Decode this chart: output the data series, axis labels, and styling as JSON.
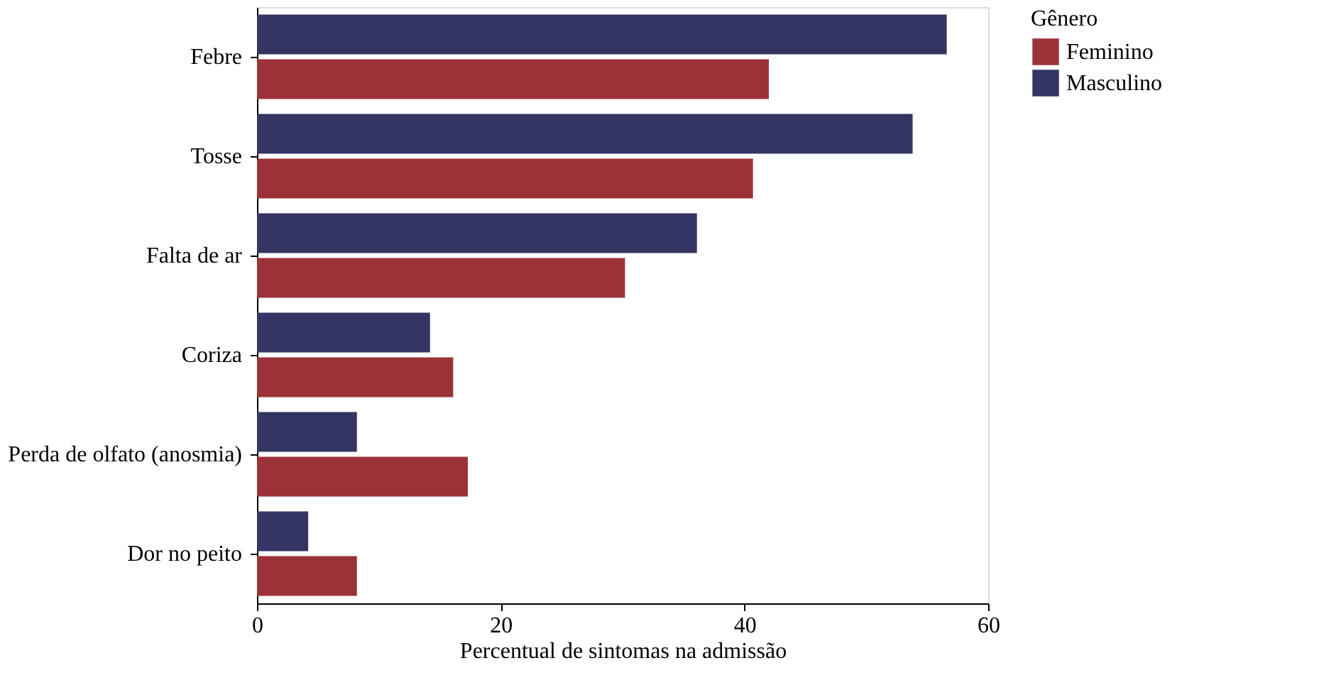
{
  "chart_data": {
    "type": "bar",
    "orientation": "horizontal",
    "xlabel": "Percentual de sintomas na admissão",
    "legend_title": "Gênero",
    "legend": "right",
    "categories": [
      "Febre",
      "Tosse",
      "Falta de ar",
      "Coriza",
      "Perda de olfato (anosmia)",
      "Dor no peito"
    ],
    "series": [
      {
        "name": "Feminino",
        "color": "#9b3237",
        "values": [
          42.0,
          40.7,
          30.2,
          16.1,
          17.3,
          8.2
        ]
      },
      {
        "name": "Masculino",
        "color": "#353564",
        "values": [
          56.6,
          53.8,
          36.1,
          14.2,
          8.2,
          4.2
        ]
      }
    ],
    "xlim": [
      0,
      60
    ],
    "xticks": [
      0,
      20,
      40,
      60
    ],
    "grid": false
  }
}
